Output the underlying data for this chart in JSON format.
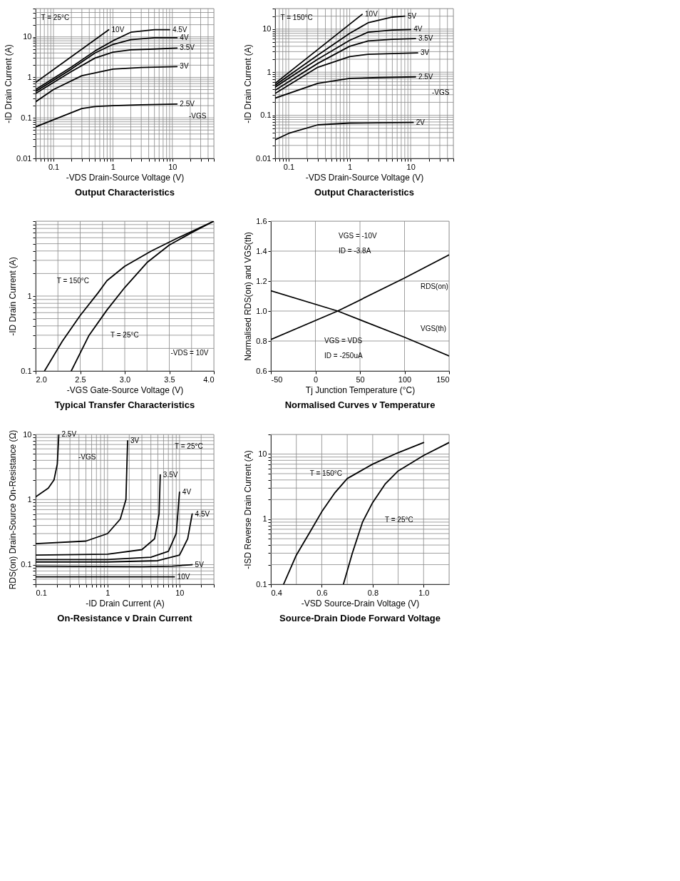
{
  "chart_data": [
    {
      "type": "line",
      "title": "Output Characteristics",
      "xlabel": "-VDS Drain-Source Voltage (V)",
      "ylabel": "-ID Drain Current (A)",
      "log": "xy",
      "grid": true,
      "xlim": [
        0.05,
        50
      ],
      "ylim": [
        0.01,
        50
      ],
      "xticks": [
        {
          "value": 0.05,
          "label": null
        },
        {
          "value": 0.06,
          "label": null
        },
        {
          "value": 0.07,
          "label": null
        },
        {
          "value": 0.08,
          "label": null
        },
        {
          "value": 0.09,
          "label": null
        },
        0.1,
        {
          "value": 0.2,
          "label": null
        },
        {
          "value": 0.3,
          "label": null
        },
        {
          "value": 0.4,
          "label": null
        },
        {
          "value": 0.5,
          "label": null
        },
        {
          "value": 0.6,
          "label": null
        },
        {
          "value": 0.7,
          "label": null
        },
        {
          "value": 0.8,
          "label": null
        },
        {
          "value": 0.9,
          "label": null
        },
        1,
        {
          "value": 2,
          "label": null
        },
        {
          "value": 3,
          "label": null
        },
        {
          "value": 4,
          "label": null
        },
        {
          "value": 5,
          "label": null
        },
        {
          "value": 6,
          "label": null
        },
        {
          "value": 7,
          "label": null
        },
        {
          "value": 8,
          "label": null
        },
        {
          "value": 9,
          "label": null
        },
        10,
        {
          "value": 20,
          "label": null
        },
        {
          "value": 30,
          "label": null
        },
        {
          "value": 40,
          "label": null
        },
        {
          "value": 50,
          "label": null
        }
      ],
      "yticks": [
        0.01,
        {
          "value": 0.02,
          "label": null
        },
        {
          "value": 0.03,
          "label": null
        },
        {
          "value": 0.04,
          "label": null
        },
        {
          "value": 0.05,
          "label": null
        },
        {
          "value": 0.06,
          "label": null
        },
        {
          "value": 0.07,
          "label": null
        },
        {
          "value": 0.08,
          "label": null
        },
        {
          "value": 0.09,
          "label": null
        },
        0.1,
        {
          "value": 0.2,
          "label": null
        },
        {
          "value": 0.3,
          "label": null
        },
        {
          "value": 0.4,
          "label": null
        },
        {
          "value": 0.5,
          "label": null
        },
        {
          "value": 0.6,
          "label": null
        },
        {
          "value": 0.7,
          "label": null
        },
        {
          "value": 0.8,
          "label": null
        },
        {
          "value": 0.9,
          "label": null
        },
        1,
        {
          "value": 2,
          "label": null
        },
        {
          "value": 3,
          "label": null
        },
        {
          "value": 4,
          "label": null
        },
        {
          "value": 5,
          "label": null
        },
        {
          "value": 6,
          "label": null
        },
        {
          "value": 7,
          "label": null
        },
        {
          "value": 8,
          "label": null
        },
        {
          "value": 9,
          "label": null
        },
        10,
        {
          "value": 20,
          "label": null
        },
        {
          "value": 30,
          "label": null
        },
        {
          "value": 40,
          "label": null
        },
        {
          "value": 50,
          "label": null
        }
      ],
      "annotations": [
        "T = 25°C",
        "-VGS"
      ],
      "series": [
        {
          "name": "10V",
          "color": "#000000",
          "x": [
            0.05,
            0.85
          ],
          "values": [
            0.75,
            15
          ]
        },
        {
          "name": "4.5V",
          "color": "#000000",
          "x": [
            0.05,
            0.2,
            0.5,
            1,
            2,
            5,
            9
          ],
          "values": [
            0.5,
            1.8,
            4.5,
            8,
            13,
            15,
            15
          ]
        },
        {
          "name": "4V",
          "color": "#000000",
          "x": [
            0.05,
            0.2,
            0.5,
            1,
            2,
            5,
            12
          ],
          "values": [
            0.45,
            1.6,
            4,
            6.5,
            8.5,
            9.5,
            9.5
          ]
        },
        {
          "name": "3.5V",
          "color": "#000000",
          "x": [
            0.05,
            0.2,
            0.5,
            1,
            2,
            5,
            12
          ],
          "values": [
            0.4,
            1.4,
            3,
            4.2,
            4.8,
            5,
            5.3
          ]
        },
        {
          "name": "3V",
          "color": "#000000",
          "x": [
            0.05,
            0.1,
            0.3,
            1,
            3,
            12
          ],
          "values": [
            0.25,
            0.5,
            1.1,
            1.6,
            1.75,
            1.85
          ]
        },
        {
          "name": "2.5V",
          "color": "#000000",
          "x": [
            0.05,
            0.1,
            0.3,
            0.5,
            1,
            3,
            12
          ],
          "values": [
            0.06,
            0.09,
            0.17,
            0.19,
            0.2,
            0.21,
            0.22
          ]
        }
      ]
    },
    {
      "type": "line",
      "title": "Output Characteristics",
      "xlabel": "-VDS Drain-Source Voltage (V)",
      "ylabel": "-ID Drain Current (A)",
      "log": "xy",
      "grid": true,
      "xlim": [
        0.06,
        50
      ],
      "ylim": [
        0.01,
        30
      ],
      "xticks": [
        {
          "value": 0.06,
          "label": null
        },
        {
          "value": 0.07,
          "label": null
        },
        {
          "value": 0.08,
          "label": null
        },
        {
          "value": 0.09,
          "label": null
        },
        0.1,
        {
          "value": 0.2,
          "label": null
        },
        {
          "value": 0.3,
          "label": null
        },
        {
          "value": 0.4,
          "label": null
        },
        {
          "value": 0.5,
          "label": null
        },
        {
          "value": 0.6,
          "label": null
        },
        {
          "value": 0.7,
          "label": null
        },
        {
          "value": 0.8,
          "label": null
        },
        {
          "value": 0.9,
          "label": null
        },
        1,
        {
          "value": 2,
          "label": null
        },
        {
          "value": 3,
          "label": null
        },
        {
          "value": 4,
          "label": null
        },
        {
          "value": 5,
          "label": null
        },
        {
          "value": 6,
          "label": null
        },
        {
          "value": 7,
          "label": null
        },
        {
          "value": 8,
          "label": null
        },
        {
          "value": 9,
          "label": null
        },
        10,
        {
          "value": 20,
          "label": null
        },
        {
          "value": 30,
          "label": null
        },
        {
          "value": 40,
          "label": null
        },
        {
          "value": 50,
          "label": null
        }
      ],
      "yticks": [
        0.01,
        {
          "value": 0.02,
          "label": null
        },
        {
          "value": 0.03,
          "label": null
        },
        {
          "value": 0.04,
          "label": null
        },
        {
          "value": 0.05,
          "label": null
        },
        {
          "value": 0.06,
          "label": null
        },
        {
          "value": 0.07,
          "label": null
        },
        {
          "value": 0.08,
          "label": null
        },
        {
          "value": 0.09,
          "label": null
        },
        0.1,
        {
          "value": 0.2,
          "label": null
        },
        {
          "value": 0.3,
          "label": null
        },
        {
          "value": 0.4,
          "label": null
        },
        {
          "value": 0.5,
          "label": null
        },
        {
          "value": 0.6,
          "label": null
        },
        {
          "value": 0.7,
          "label": null
        },
        {
          "value": 0.8,
          "label": null
        },
        {
          "value": 0.9,
          "label": null
        },
        1,
        {
          "value": 2,
          "label": null
        },
        {
          "value": 3,
          "label": null
        },
        {
          "value": 4,
          "label": null
        },
        {
          "value": 5,
          "label": null
        },
        {
          "value": 6,
          "label": null
        },
        {
          "value": 7,
          "label": null
        },
        {
          "value": 8,
          "label": null
        },
        {
          "value": 9,
          "label": null
        },
        10,
        {
          "value": 20,
          "label": null
        },
        {
          "value": 30,
          "label": null
        }
      ],
      "annotations": [
        "T = 150°C",
        "-VGS"
      ],
      "series": [
        {
          "name": "10V",
          "color": "#000000",
          "x": [
            0.06,
            1.6
          ],
          "values": [
            0.55,
            22
          ]
        },
        {
          "name": "5V",
          "color": "#000000",
          "x": [
            0.06,
            0.3,
            1,
            2,
            5,
            8
          ],
          "values": [
            0.5,
            2.5,
            8,
            14,
            19,
            20
          ]
        },
        {
          "name": "4V",
          "color": "#000000",
          "x": [
            0.06,
            0.3,
            1,
            2,
            5,
            10
          ],
          "values": [
            0.45,
            2,
            5.5,
            8.5,
            9.5,
            9.8
          ]
        },
        {
          "name": "3.5V",
          "color": "#000000",
          "x": [
            0.06,
            0.3,
            1,
            2,
            5,
            12
          ],
          "values": [
            0.38,
            1.6,
            4,
            5.3,
            5.8,
            6
          ]
        },
        {
          "name": "3V",
          "color": "#000000",
          "x": [
            0.06,
            0.3,
            1,
            2,
            5,
            13
          ],
          "values": [
            0.32,
            1.3,
            2.3,
            2.6,
            2.7,
            2.8
          ]
        },
        {
          "name": "2.5V",
          "color": "#000000",
          "x": [
            0.06,
            0.3,
            1,
            3,
            12
          ],
          "values": [
            0.25,
            0.55,
            0.72,
            0.75,
            0.78
          ]
        },
        {
          "name": "2V",
          "color": "#000000",
          "x": [
            0.06,
            0.1,
            0.3,
            1,
            3,
            11
          ],
          "values": [
            0.027,
            0.038,
            0.06,
            0.066,
            0.067,
            0.068
          ]
        }
      ]
    },
    {
      "type": "line",
      "title": "Typical Transfer Characteristics",
      "xlabel": "-VGS Gate-Source Voltage (V)",
      "ylabel": "-ID Drain Current (A)",
      "log": "y",
      "grid": true,
      "xlim": [
        2.0,
        4.0
      ],
      "ylim": [
        0.1,
        10
      ],
      "xticks": [
        {
          "value": 2.0,
          "label": "2.0"
        },
        {
          "value": 2.25,
          "label": null
        },
        2.5,
        {
          "value": 2.75,
          "label": null
        },
        {
          "value": 3.0,
          "label": "3.0"
        },
        {
          "value": 3.25,
          "label": null
        },
        3.5,
        {
          "value": 3.75,
          "label": null
        },
        {
          "value": 4.0,
          "label": "4.0"
        }
      ],
      "yticks": [
        0.1,
        {
          "value": 0.2,
          "label": null
        },
        {
          "value": 0.3,
          "label": null
        },
        {
          "value": 0.4,
          "label": null
        },
        {
          "value": 0.5,
          "label": null
        },
        {
          "value": 0.6,
          "label": null
        },
        {
          "value": 0.7,
          "label": null
        },
        {
          "value": 0.8,
          "label": null
        },
        {
          "value": 0.9,
          "label": null
        },
        1,
        {
          "value": 2,
          "label": null
        },
        {
          "value": 3,
          "label": null
        },
        {
          "value": 4,
          "label": null
        },
        {
          "value": 5,
          "label": null
        },
        {
          "value": 6,
          "label": null
        },
        {
          "value": 7,
          "label": null
        },
        {
          "value": 8,
          "label": null
        },
        {
          "value": 9,
          "label": null
        },
        {
          "value": 10,
          "label": null
        }
      ],
      "annotations": [
        "-VDS = 10V"
      ],
      "series": [
        {
          "name": "T = 150°C",
          "color": "#000000",
          "x": [
            2.1,
            2.3,
            2.5,
            2.7,
            2.8,
            3.0,
            3.3,
            3.6,
            4.0
          ],
          "values": [
            0.1,
            0.25,
            0.55,
            1.1,
            1.6,
            2.5,
            4,
            6,
            10
          ]
        },
        {
          "name": "T = 25°C",
          "color": "#000000",
          "x": [
            2.4,
            2.6,
            2.8,
            3.0,
            3.25,
            3.5,
            3.75,
            4.0
          ],
          "values": [
            0.1,
            0.3,
            0.65,
            1.3,
            2.8,
            4.8,
            7,
            10
          ]
        }
      ]
    },
    {
      "type": "line",
      "title": "Normalised Curves v Temperature",
      "xlabel": "Tj Junction Temperature (°C)",
      "ylabel": "Normalised RDS(on) and VGS(th)",
      "grid": true,
      "xlim": [
        -50,
        150
      ],
      "ylim": [
        0.6,
        1.6
      ],
      "xticks": [
        -50,
        0,
        50,
        100,
        150
      ],
      "yticks": [
        0.6,
        0.8,
        {
          "value": 1.0,
          "label": "1.0"
        },
        1.2,
        1.4,
        1.6
      ],
      "annotations": [
        "VGS = -10V",
        "ID = -3.8A",
        "VGS = VDS",
        "ID = -250uA"
      ],
      "series": [
        {
          "name": "RDS(on)",
          "color": "#000000",
          "x": [
            -50,
            25,
            100,
            150
          ],
          "values": [
            0.81,
            1.0,
            1.22,
            1.375
          ]
        },
        {
          "name": "VGS(th)",
          "color": "#000000",
          "x": [
            -50,
            25,
            100,
            150
          ],
          "values": [
            1.135,
            1.0,
            0.825,
            0.7
          ]
        }
      ]
    },
    {
      "type": "line",
      "title": "On-Resistance v Drain Current",
      "xlabel": "-ID Drain Current (A)",
      "ylabel": "RDS(on) Drain-Source On-Resistance (Ω)",
      "log": "xy",
      "grid": true,
      "xlim": [
        0.1,
        30
      ],
      "ylim": [
        0.05,
        10
      ],
      "xticks": [
        0.1,
        {
          "value": 0.2,
          "label": null
        },
        {
          "value": 0.3,
          "label": null
        },
        {
          "value": 0.4,
          "label": null
        },
        {
          "value": 0.5,
          "label": null
        },
        {
          "value": 0.6,
          "label": null
        },
        {
          "value": 0.7,
          "label": null
        },
        {
          "value": 0.8,
          "label": null
        },
        {
          "value": 0.9,
          "label": null
        },
        1,
        {
          "value": 2,
          "label": null
        },
        {
          "value": 3,
          "label": null
        },
        {
          "value": 4,
          "label": null
        },
        {
          "value": 5,
          "label": null
        },
        {
          "value": 6,
          "label": null
        },
        {
          "value": 7,
          "label": null
        },
        {
          "value": 8,
          "label": null
        },
        {
          "value": 9,
          "label": null
        },
        10,
        {
          "value": 20,
          "label": null
        },
        {
          "value": 30,
          "label": null
        }
      ],
      "yticks": [
        {
          "value": 0.05,
          "label": null
        },
        {
          "value": 0.06,
          "label": null
        },
        {
          "value": 0.07,
          "label": null
        },
        {
          "value": 0.08,
          "label": null
        },
        {
          "value": 0.09,
          "label": null
        },
        0.1,
        {
          "value": 0.2,
          "label": null
        },
        {
          "value": 0.3,
          "label": null
        },
        {
          "value": 0.4,
          "label": null
        },
        {
          "value": 0.5,
          "label": null
        },
        {
          "value": 0.6,
          "label": null
        },
        {
          "value": 0.7,
          "label": null
        },
        {
          "value": 0.8,
          "label": null
        },
        {
          "value": 0.9,
          "label": null
        },
        1,
        {
          "value": 2,
          "label": null
        },
        {
          "value": 3,
          "label": null
        },
        {
          "value": 4,
          "label": null
        },
        {
          "value": 5,
          "label": null
        },
        {
          "value": 6,
          "label": null
        },
        {
          "value": 7,
          "label": null
        },
        {
          "value": 8,
          "label": null
        },
        {
          "value": 9,
          "label": null
        },
        10
      ],
      "annotations": [
        "-VGS",
        "T = 25°C"
      ],
      "series": [
        {
          "name": "2.5V",
          "color": "#000000",
          "x": [
            0.1,
            0.15,
            0.18,
            0.2,
            0.21
          ],
          "values": [
            1.1,
            1.5,
            2,
            3.5,
            10
          ]
        },
        {
          "name": "3V",
          "color": "#000000",
          "x": [
            0.1,
            0.5,
            1,
            1.5,
            1.8,
            1.85,
            1.9
          ],
          "values": [
            0.21,
            0.23,
            0.3,
            0.5,
            1,
            3,
            8
          ]
        },
        {
          "name": "3.5V",
          "color": "#000000",
          "x": [
            0.1,
            1,
            3,
            4.5,
            5.2,
            5.4
          ],
          "values": [
            0.14,
            0.145,
            0.17,
            0.25,
            0.6,
            2.4
          ]
        },
        {
          "name": "4V",
          "color": "#000000",
          "x": [
            0.1,
            1,
            4,
            7,
            9,
            10
          ],
          "values": [
            0.12,
            0.12,
            0.13,
            0.16,
            0.3,
            1.3
          ]
        },
        {
          "name": "4.5V",
          "color": "#000000",
          "x": [
            0.1,
            1,
            5,
            10,
            13,
            15
          ],
          "values": [
            0.11,
            0.11,
            0.115,
            0.14,
            0.25,
            0.6
          ]
        },
        {
          "name": "5V",
          "color": "#000000",
          "x": [
            0.1,
            3,
            8,
            15
          ],
          "values": [
            0.095,
            0.093,
            0.095,
            0.1
          ]
        },
        {
          "name": "10V",
          "color": "#000000",
          "x": [
            0.1,
            8.5
          ],
          "values": [
            0.065,
            0.065
          ]
        }
      ]
    },
    {
      "type": "line",
      "title": "Source-Drain Diode Forward Voltage",
      "xlabel": "-VSD Source-Drain Voltage (V)",
      "ylabel": "-ISD Reverse Drain Current (A)",
      "log": "y",
      "grid": true,
      "xlim": [
        0.4,
        1.1
      ],
      "ylim": [
        0.1,
        20
      ],
      "xticks": [
        {
          "value": 0.4,
          "label": "0.4"
        },
        {
          "value": 0.5,
          "label": null
        },
        0.6,
        {
          "value": 0.7,
          "label": null
        },
        0.8,
        {
          "value": 0.9,
          "label": null
        },
        {
          "value": 1.0,
          "label": "1.0"
        },
        {
          "value": 1.1,
          "label": null
        }
      ],
      "yticks": [
        0.1,
        {
          "value": 0.2,
          "label": null
        },
        {
          "value": 0.3,
          "label": null
        },
        {
          "value": 0.4,
          "label": null
        },
        {
          "value": 0.5,
          "label": null
        },
        {
          "value": 0.6,
          "label": null
        },
        {
          "value": 0.7,
          "label": null
        },
        {
          "value": 0.8,
          "label": null
        },
        {
          "value": 0.9,
          "label": null
        },
        1,
        {
          "value": 2,
          "label": null
        },
        {
          "value": 3,
          "label": null
        },
        {
          "value": 4,
          "label": null
        },
        {
          "value": 5,
          "label": null
        },
        {
          "value": 6,
          "label": null
        },
        {
          "value": 7,
          "label": null
        },
        {
          "value": 8,
          "label": null
        },
        {
          "value": 9,
          "label": null
        },
        10,
        {
          "value": 20,
          "label": null
        }
      ],
      "series": [
        {
          "name": "T = 150°C",
          "color": "#000000",
          "x": [
            0.45,
            0.5,
            0.55,
            0.6,
            0.65,
            0.7,
            0.8,
            0.9,
            1.0
          ],
          "values": [
            0.1,
            0.28,
            0.6,
            1.3,
            2.5,
            4.2,
            7,
            10.5,
            15
          ]
        },
        {
          "name": "T = 25°C",
          "color": "#000000",
          "x": [
            0.685,
            0.72,
            0.76,
            0.8,
            0.85,
            0.9,
            1.0,
            1.1
          ],
          "values": [
            0.1,
            0.3,
            0.9,
            1.8,
            3.5,
            5.5,
            9.5,
            15
          ]
        }
      ]
    }
  ]
}
